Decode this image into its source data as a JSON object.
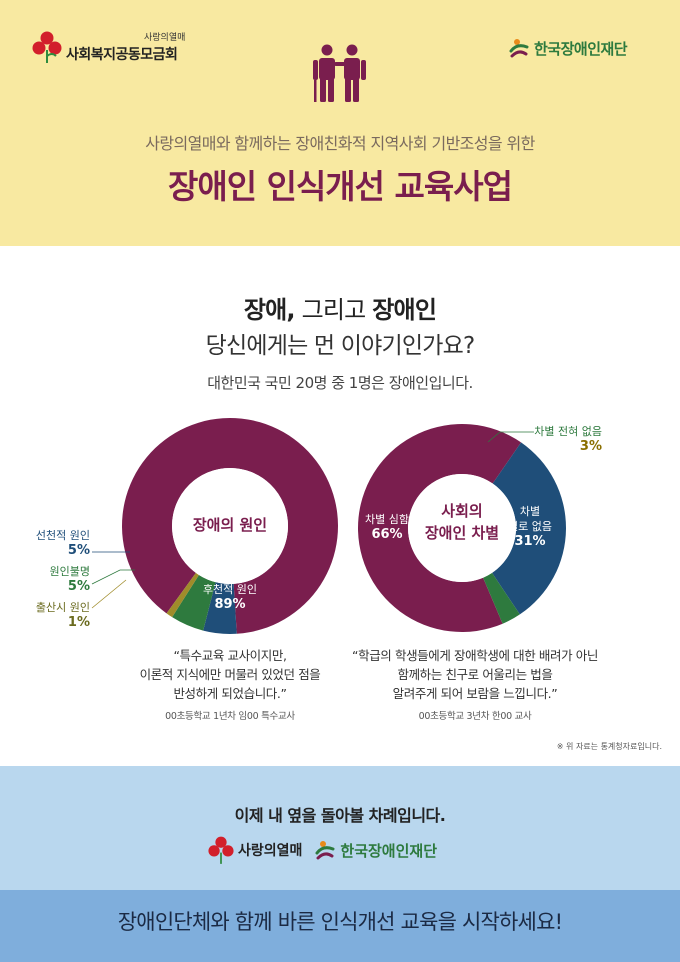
{
  "header": {
    "logo_left_small": "사랑의열매",
    "logo_left_name": "사회복지공동모금회",
    "logo_right_name": "한국장애인재단",
    "people_icon": "people-walking-icon",
    "subtitle": "사랑의열매와 함께하는 장애친화적 지역사회 기반조성을 위한",
    "title": "장애인 인식개선 교육사업"
  },
  "intro": {
    "q1_bold_a": "장애,",
    "q1_mid": " 그리고 ",
    "q1_bold_b": "장애인",
    "q2": "당신에게는 먼 이야기인가요?",
    "stat": "대한민국 국민 20명 중 1명은 장애인입니다."
  },
  "colors": {
    "plum": "#7a1e4e",
    "navy": "#1f4e79",
    "green": "#2e7a3e",
    "olive": "#a08c2a",
    "header_bg": "#f8e9a1",
    "footer_bg": "#b9d7ee",
    "bottom_bg": "#7faedc"
  },
  "chart_data": [
    {
      "type": "pie",
      "title": "장애의 원인",
      "categories": [
        "후천적 원인",
        "선천적 원인",
        "원인불명",
        "출산시 원인"
      ],
      "values": [
        89,
        5,
        5,
        1
      ],
      "labels": [
        "89%",
        "5%",
        "5%",
        "1%"
      ]
    },
    {
      "type": "pie",
      "title": "사회의 장애인 차별",
      "categories": [
        "차별 심함",
        "차별 별로 없음",
        "차별 전혀 없음"
      ],
      "values": [
        66,
        31,
        3
      ],
      "labels": [
        "66%",
        "31%",
        "3%"
      ]
    }
  ],
  "chart1_labels": {
    "center": "장애의 원인",
    "acquired": "후천적 원인",
    "acquired_pct": "89%",
    "congenital": "선천적 원인",
    "congenital_pct": "5%",
    "unknown": "원인불명",
    "unknown_pct": "5%",
    "birth": "출산시 원인",
    "birth_pct": "1%"
  },
  "chart2_labels": {
    "center_line1": "사회의",
    "center_line2": "장애인 차별",
    "severe": "차별 심함",
    "severe_pct": "66%",
    "little_line1": "차별",
    "little_line2": "별로 없음",
    "little_pct": "31%",
    "none": "차별 전혀 없음",
    "none_pct": "3%"
  },
  "quotes": {
    "left_line1": "“특수교육 교사이지만,",
    "left_line2": "이론적 지식에만 머물러 있었던 점을",
    "left_line3": "반성하게 되었습니다.”",
    "left_attrib": "00초등학교 1년차 임00 특수교사",
    "right_line1": "“학급의 학생들에게 장애학생에 대한 배려가 아닌",
    "right_line2": "함께하는 친구로 어울리는 법을",
    "right_line3": "알려주게 되어 보람을 느낍니다.”",
    "right_attrib": "00초등학교 3년차 한00 교사"
  },
  "note": "※ 위 자료는 통계청자료입니다.",
  "footer": {
    "text": "이제 내 옆을 돌아볼 차례입니다.",
    "logo_love": "사랑의열매",
    "logo_found": "한국장애인재단",
    "bottom": "장애인단체와 함께 바른 인식개선 교육을 시작하세요!"
  }
}
